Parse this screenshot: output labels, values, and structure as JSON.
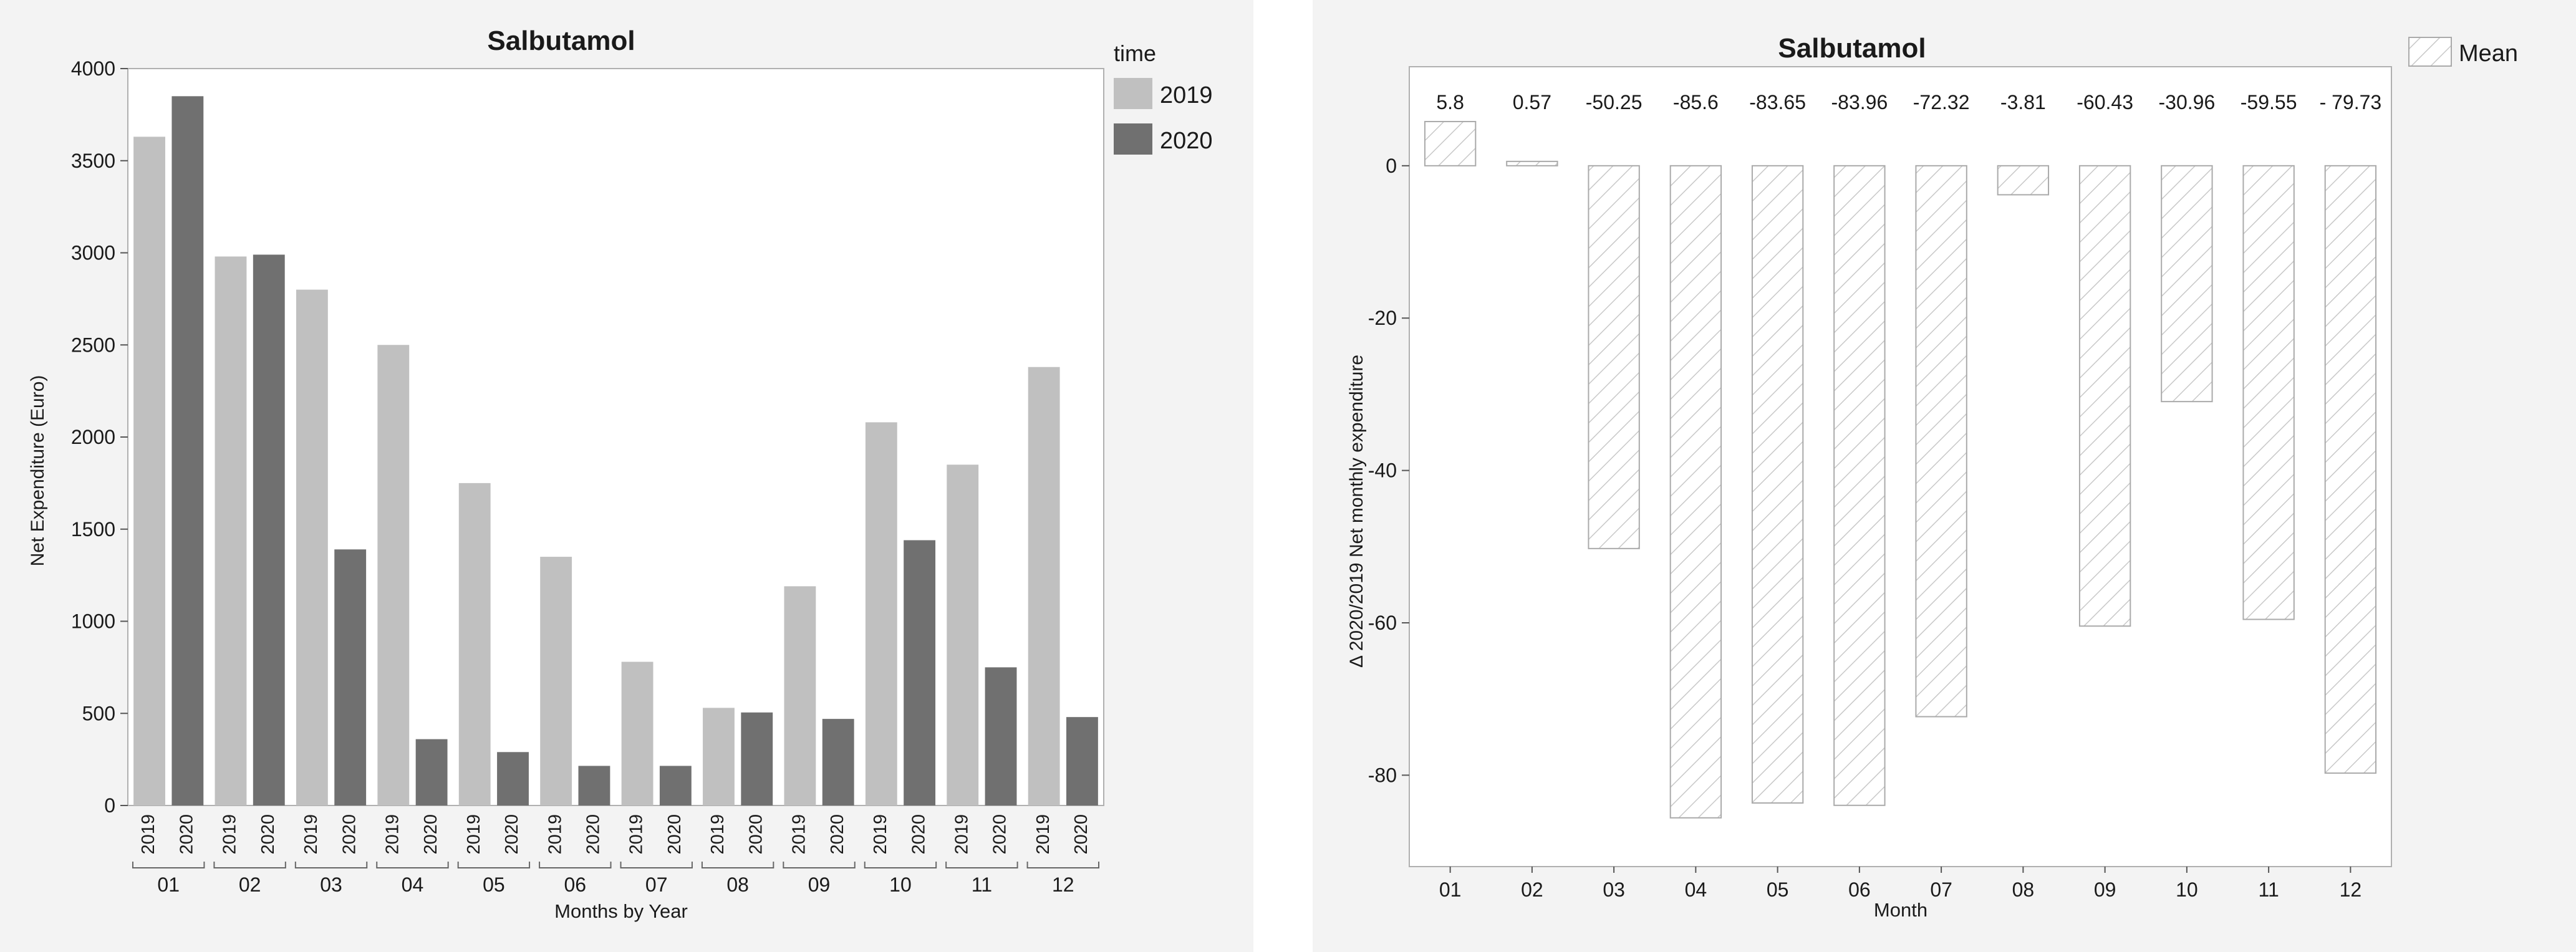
{
  "chart_data": [
    {
      "type": "bar",
      "title": "Salbutamol",
      "xlabel": "Months by Year",
      "ylabel": "Net Expenditure (Euro)",
      "ylim": [
        0,
        4000
      ],
      "yticks": [
        "0",
        "500",
        "1000",
        "1500",
        "2000",
        "2500",
        "3000",
        "3500",
        "4000"
      ],
      "categories": [
        "01",
        "02",
        "03",
        "04",
        "05",
        "06",
        "07",
        "08",
        "09",
        "10",
        "11",
        "12"
      ],
      "series": [
        {
          "name": "2019",
          "color": "#c0c0c0",
          "values": [
            3630,
            2980,
            2800,
            2500,
            1750,
            1350,
            780,
            530,
            1190,
            2080,
            1850,
            2380
          ]
        },
        {
          "name": "2020",
          "color": "#707070",
          "values": [
            3850,
            2990,
            1390,
            360,
            290,
            215,
            215,
            505,
            470,
            1440,
            750,
            480
          ]
        }
      ],
      "legend": {
        "title": "time",
        "items": [
          "2019",
          "2020"
        ],
        "placement": "right"
      }
    },
    {
      "type": "bar",
      "title": "Salbutamol",
      "xlabel": "Month",
      "ylabel": "Δ 2020/2019 Net monthly expenditure",
      "ylim": [
        -92,
        13
      ],
      "yticks": [
        "0",
        "-20",
        "-40",
        "-60",
        "-80"
      ],
      "categories": [
        "01",
        "02",
        "03",
        "04",
        "05",
        "06",
        "07",
        "08",
        "09",
        "10",
        "11",
        "12"
      ],
      "values": [
        5.8,
        0.57,
        -50.25,
        -85.6,
        -83.65,
        -83.96,
        -72.32,
        -3.81,
        -60.43,
        -30.96,
        -59.55,
        -79.73
      ],
      "data_labels": [
        "5.8",
        "0.57",
        "-50.25",
        "-85.6",
        "-83.65",
        "-83.96",
        "-72.32",
        "-3.81",
        "-60.43",
        "-30.96",
        "-59.55",
        "- 79.73"
      ],
      "pattern": "hatched",
      "legend": {
        "items": [
          "Mean"
        ],
        "placement": "top-right"
      }
    }
  ]
}
